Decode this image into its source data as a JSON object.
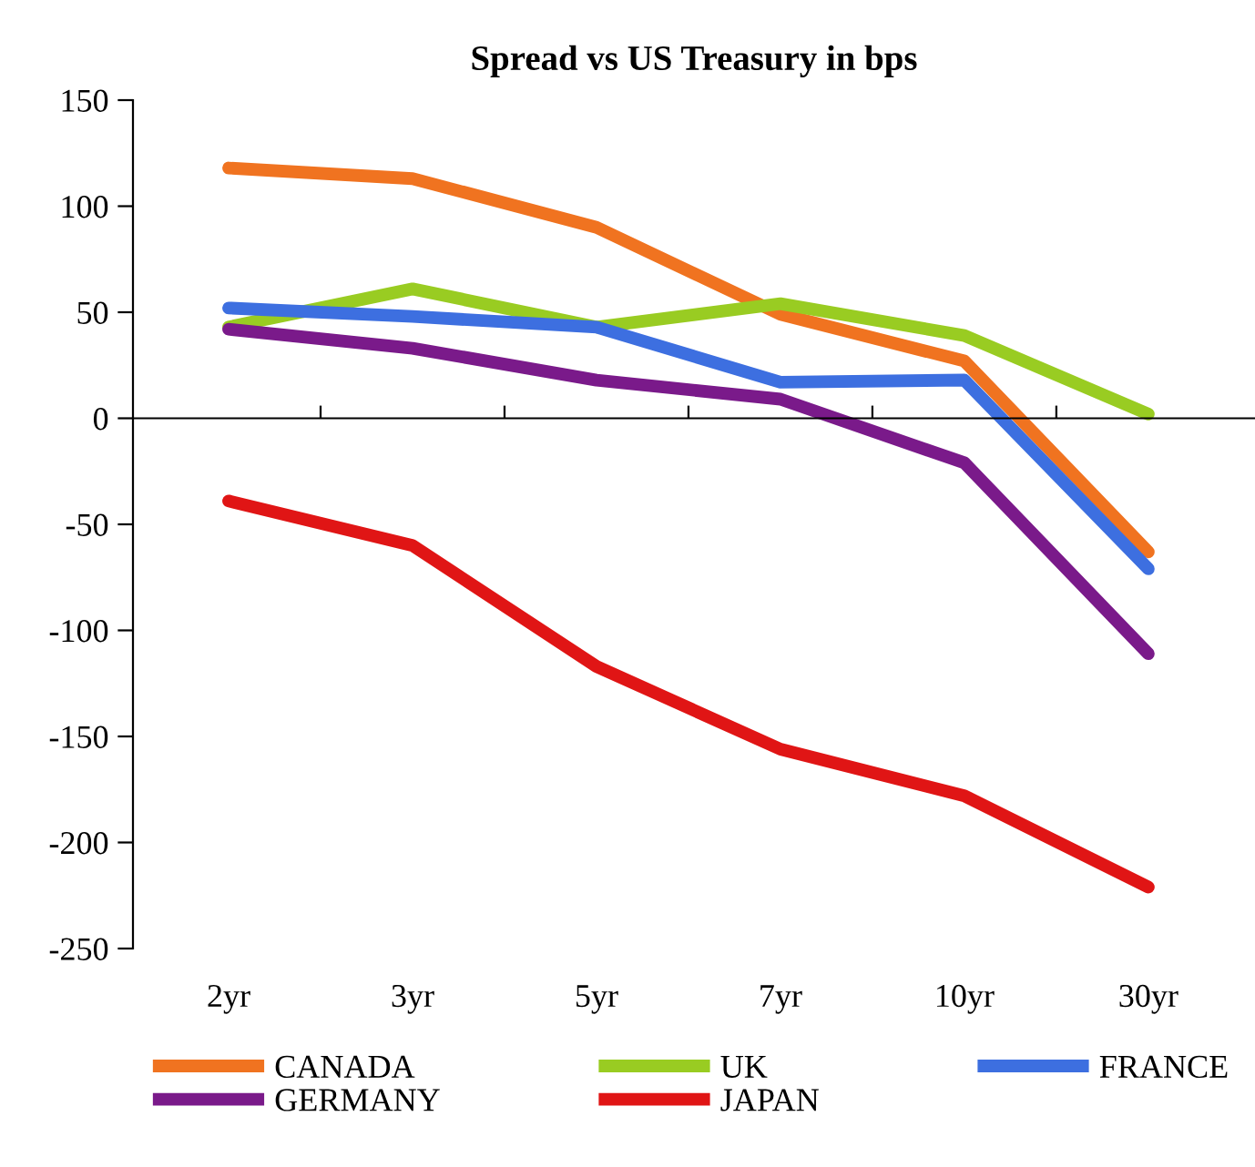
{
  "chart_data": {
    "type": "line",
    "title": "Spread vs US Treasury in bps",
    "categories": [
      "2yr",
      "3yr",
      "5yr",
      "7yr",
      "10yr",
      "30yr"
    ],
    "series": [
      {
        "name": "CANADA",
        "color": "#f07320",
        "values": [
          118,
          113,
          90,
          49,
          27,
          -63
        ]
      },
      {
        "name": "UK",
        "color": "#99cc22",
        "values": [
          43,
          61,
          43,
          54,
          39,
          2
        ]
      },
      {
        "name": "FRANCE",
        "color": "#3d6fe0",
        "values": [
          52,
          48,
          43,
          17,
          18,
          -71
        ]
      },
      {
        "name": "GERMANY",
        "color": "#7a1a8a",
        "values": [
          42,
          33,
          18,
          9,
          -21,
          -111
        ]
      },
      {
        "name": "JAPAN",
        "color": "#e01515",
        "values": [
          -39,
          -60,
          -117,
          -156,
          -178,
          -221
        ]
      }
    ],
    "ylim": [
      -250,
      150
    ],
    "yticks": [
      -250,
      -200,
      -150,
      -100,
      -50,
      0,
      50,
      100,
      150
    ],
    "legend": "bottom",
    "marker": "none",
    "line_style": "solid"
  }
}
